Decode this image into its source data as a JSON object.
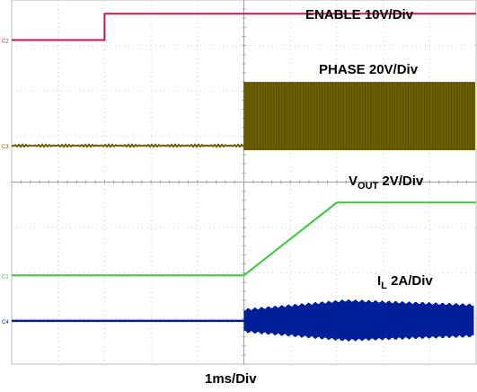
{
  "chart_data": {
    "type": "line",
    "title": "",
    "xlabel": "1ms/Div",
    "ylabel": "",
    "x_divisions": 10,
    "y_divisions": 8,
    "x_range_ms": [
      0,
      10
    ],
    "grid": true,
    "series": [
      {
        "name": "ENABLE 10V/Div",
        "color": "#c2185b",
        "channel_marker": "C2",
        "points_div": [
          [
            0,
            7.12
          ],
          [
            2.0,
            7.12
          ],
          [
            2.0,
            7.7
          ],
          [
            10,
            7.7
          ]
        ]
      },
      {
        "name": "PHASE 20V/Div",
        "color": "#6b5f00",
        "channel_marker": "C3",
        "baseline_div": 4.8,
        "switching_start_div": 5.0,
        "switching_top_div": 6.2,
        "switching_bottom_div": 4.7
      },
      {
        "name": "VOUT 2V/Div",
        "label_main": "V",
        "label_sub": "OUT",
        "label_rest": " 2V/Div",
        "color": "#33cc33",
        "channel_marker": "C1",
        "points_div": [
          [
            0,
            1.95
          ],
          [
            5.0,
            1.95
          ],
          [
            7.0,
            3.55
          ],
          [
            10,
            3.55
          ]
        ]
      },
      {
        "name": "IL 2A/Div",
        "label_main": "I",
        "label_sub": "L",
        "label_rest": "  2A/Div",
        "color": "#001f99",
        "channel_marker": "C4",
        "baseline_div": 0.95,
        "ripple_start_div": 5.0,
        "ripple_peak_div": 1.4,
        "ripple_settled_div": 1.3
      }
    ]
  }
}
